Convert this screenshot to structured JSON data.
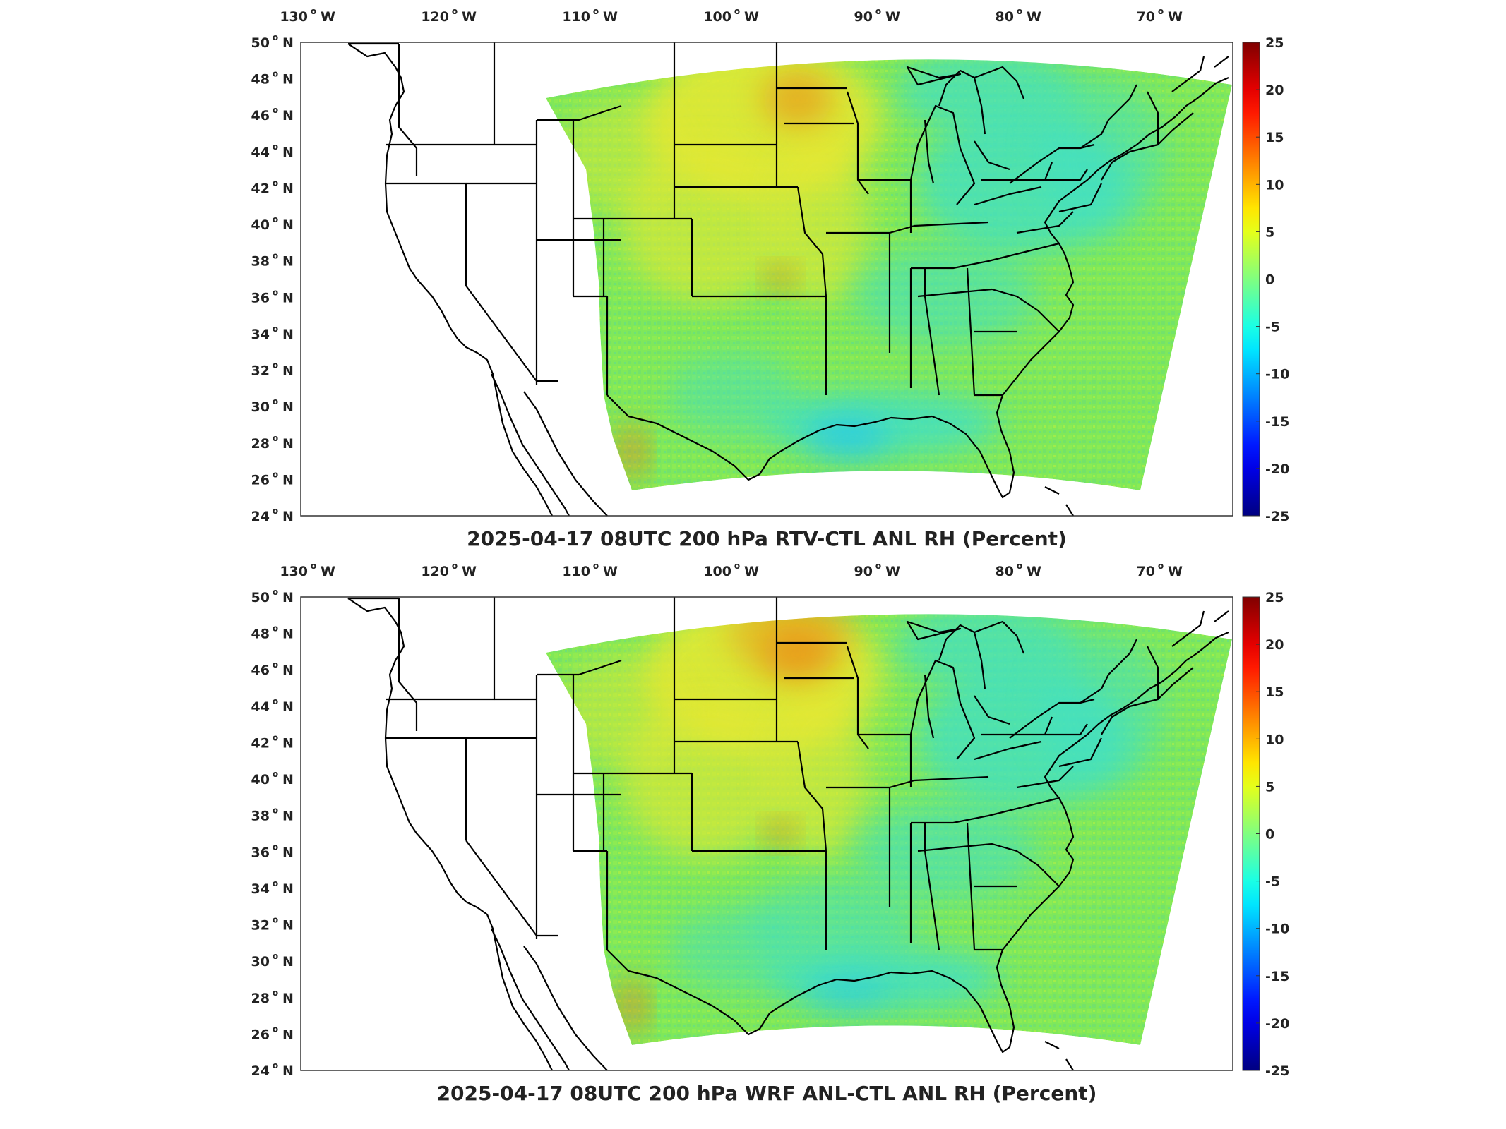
{
  "panels": [
    {
      "id": "top",
      "title": "2025-04-17 08UTC 200 hPa RTV-CTL ANL RH (Percent)",
      "variant": "rtv"
    },
    {
      "id": "bottom",
      "title": "2025-04-17 08UTC 200 hPa WRF ANL-CTL ANL RH (Percent)",
      "variant": "wrf"
    }
  ],
  "map": {
    "lon_range": [
      -131,
      -65
    ],
    "lat_range": [
      24,
      50
    ],
    "lon_ticks": [
      {
        "value": -130,
        "label": "130",
        "hemi": "W"
      },
      {
        "value": -120,
        "label": "120",
        "hemi": "W"
      },
      {
        "value": -110,
        "label": "110",
        "hemi": "W"
      },
      {
        "value": -100,
        "label": "100",
        "hemi": "W"
      },
      {
        "value": -90,
        "label": "90",
        "hemi": "W"
      },
      {
        "value": -80,
        "label": "80",
        "hemi": "W"
      },
      {
        "value": -70,
        "label": "70",
        "hemi": "W"
      }
    ],
    "lat_ticks": [
      {
        "value": 50,
        "label": "50",
        "hemi": "N"
      },
      {
        "value": 48,
        "label": "48",
        "hemi": "N"
      },
      {
        "value": 46,
        "label": "46",
        "hemi": "N"
      },
      {
        "value": 44,
        "label": "44",
        "hemi": "N"
      },
      {
        "value": 42,
        "label": "42",
        "hemi": "N"
      },
      {
        "value": 40,
        "label": "40",
        "hemi": "N"
      },
      {
        "value": 38,
        "label": "38",
        "hemi": "N"
      },
      {
        "value": 36,
        "label": "36",
        "hemi": "N"
      },
      {
        "value": 34,
        "label": "34",
        "hemi": "N"
      },
      {
        "value": 32,
        "label": "32",
        "hemi": "N"
      },
      {
        "value": 30,
        "label": "30",
        "hemi": "N"
      },
      {
        "value": 28,
        "label": "28",
        "hemi": "N"
      },
      {
        "value": 26,
        "label": "26",
        "hemi": "N"
      },
      {
        "value": 24,
        "label": "24",
        "hemi": "N"
      }
    ]
  },
  "colorbar": {
    "min": -25,
    "max": 25,
    "ticks": [
      "25",
      "20",
      "15",
      "10",
      "5",
      "0",
      "-5",
      "-10",
      "-15",
      "-20",
      "-25"
    ],
    "colormap": "jet"
  },
  "colors": {
    "field_base": "#7fe85a",
    "positive_strong": "#f07a10",
    "positive_mild": "#e8e830",
    "negative_mild": "#3fe0c8",
    "negative_strong": "#22c8f0",
    "boundary": "#000000"
  }
}
